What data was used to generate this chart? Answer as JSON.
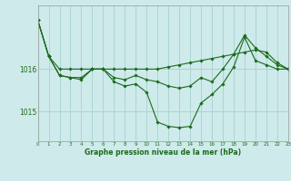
{
  "xlabel": "Graphe pression niveau de la mer (hPa)",
  "bg_color": "#ceeaea",
  "grid_color": "#aed4d4",
  "line_color": "#1a6b1a",
  "hours": [
    0,
    1,
    2,
    3,
    4,
    5,
    6,
    7,
    8,
    9,
    10,
    11,
    12,
    13,
    14,
    15,
    16,
    17,
    18,
    19,
    20,
    21,
    22,
    23
  ],
  "line1": [
    1017.15,
    1016.3,
    1016.0,
    1016.0,
    1016.0,
    1016.0,
    1016.0,
    1016.0,
    1016.0,
    1016.0,
    1016.0,
    1016.0,
    1016.05,
    1016.1,
    1016.15,
    1016.2,
    1016.25,
    1016.3,
    1016.35,
    1016.4,
    1016.45,
    1016.4,
    1016.15,
    1016.0
  ],
  "line2": [
    1017.15,
    1016.3,
    1015.85,
    1015.8,
    1015.8,
    1016.0,
    1016.0,
    1015.8,
    1015.75,
    1015.85,
    1015.75,
    1015.7,
    1015.6,
    1015.55,
    1015.6,
    1015.8,
    1015.7,
    1016.0,
    1016.35,
    1016.8,
    1016.5,
    1016.3,
    1016.1,
    1016.0
  ],
  "line3": [
    1017.15,
    1016.3,
    1015.85,
    1015.8,
    1015.75,
    1016.0,
    1016.0,
    1015.7,
    1015.6,
    1015.65,
    1015.45,
    1014.75,
    1014.65,
    1014.62,
    1014.65,
    1015.2,
    1015.4,
    1015.65,
    1016.05,
    1016.75,
    1016.2,
    1016.1,
    1016.0,
    1016.0
  ],
  "ylim_min": 1014.3,
  "ylim_max": 1017.5,
  "yticks": [
    1015.0,
    1016.0
  ],
  "xlim_min": 0,
  "xlim_max": 23
}
